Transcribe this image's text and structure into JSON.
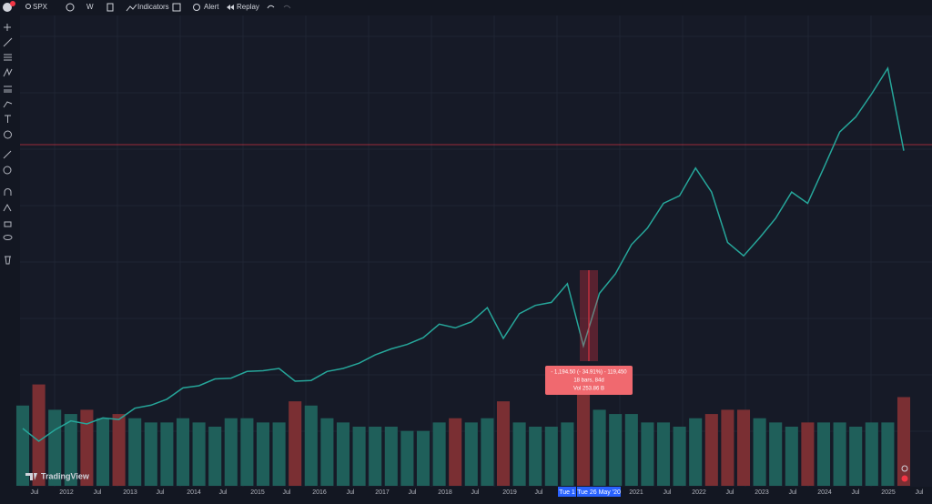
{
  "toolbar": {
    "symbol": "SPX",
    "interval": "W",
    "indicators": "Indicators",
    "alert": "Alert",
    "replay": "Replay"
  },
  "chart": {
    "price_line": {
      "color": "#26a69a",
      "values": [
        1300,
        1130,
        1280,
        1400,
        1360,
        1440,
        1420,
        1570,
        1610,
        1690,
        1840,
        1870,
        1960,
        1970,
        2060,
        2070,
        2100,
        1930,
        1940,
        2060,
        2100,
        2170,
        2280,
        2360,
        2420,
        2510,
        2690,
        2640,
        2720,
        2910,
        2500,
        2830,
        2940,
        2980,
        3230,
        2400,
        3100,
        3360,
        3750,
        3970,
        4300,
        4400,
        4770,
        4450,
        3780,
        3600,
        3840,
        4100,
        4450,
        4300,
        4770,
        5250,
        5450,
        5760,
        6100,
        5000
      ]
    },
    "volume": {
      "up_color": "#1f5f5a",
      "down_color": "#7a2f33",
      "values": [
        19,
        24,
        18,
        17,
        18,
        16,
        17,
        16,
        15,
        15,
        16,
        15,
        14,
        16,
        16,
        15,
        15,
        20,
        19,
        16,
        15,
        14,
        14,
        14,
        13,
        13,
        15,
        16,
        15,
        16,
        20,
        15,
        14,
        14,
        15,
        28,
        18,
        17,
        17,
        15,
        15,
        14,
        16,
        17,
        18,
        18,
        16,
        15,
        14,
        15,
        15,
        15,
        14,
        15,
        15,
        21
      ]
    },
    "x_labels": [
      "Jul",
      "2012",
      "Jul",
      "2013",
      "Jul",
      "2014",
      "Jul",
      "2015",
      "Jul",
      "2016",
      "Jul",
      "2017",
      "Jul",
      "2018",
      "Jul",
      "2019",
      "Jul",
      "2021",
      "Jul",
      "2022",
      "Jul",
      "2023",
      "Jul",
      "2024",
      "Jul",
      "2025",
      "Jul"
    ],
    "crosshair_labels": [
      "Tue 1",
      "Tue 26 May '20"
    ],
    "measure": {
      "line1": "- 1,194.50 (- 34.91%) - 119,450",
      "line2": "18 bars, 84d",
      "line3": "Vol 253.86 B"
    },
    "watermark": "TradingView"
  }
}
